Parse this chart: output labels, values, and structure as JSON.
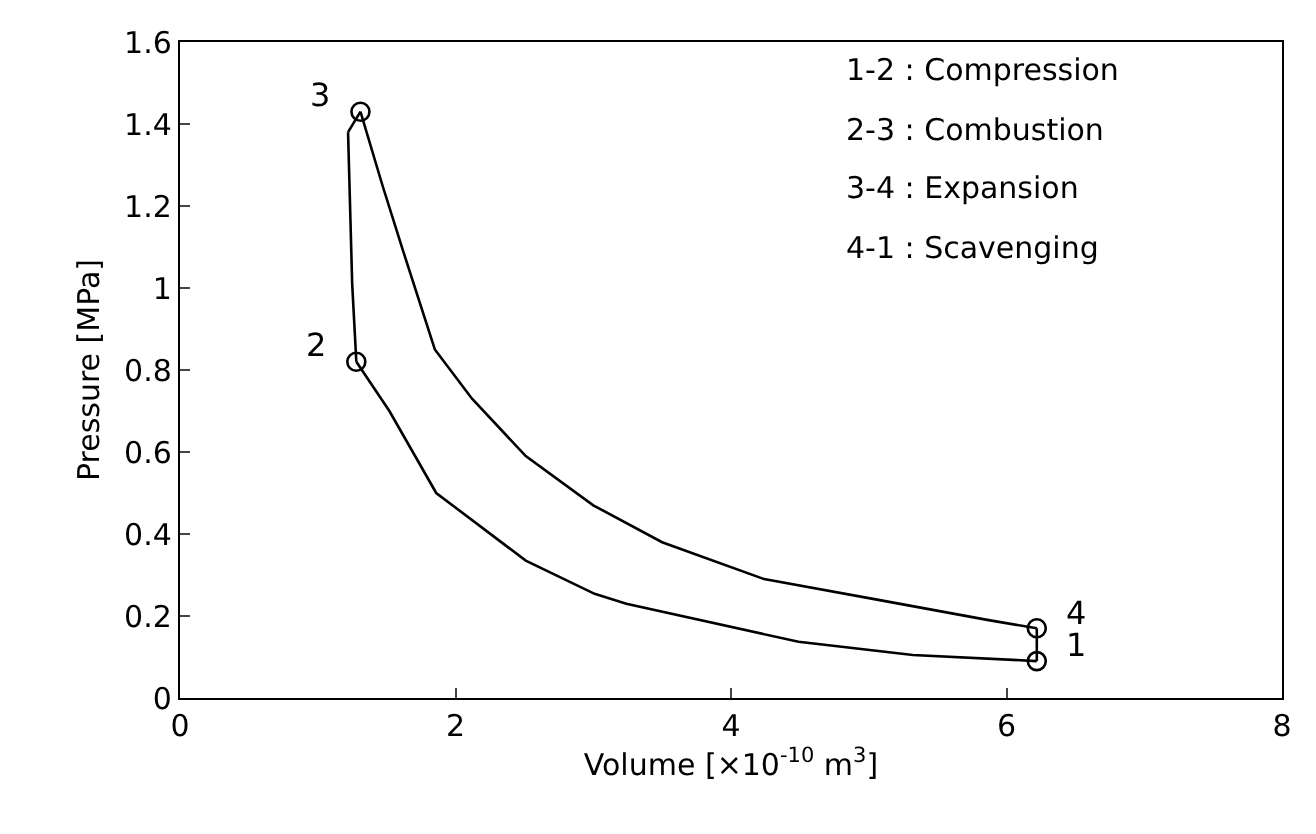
{
  "chart_data": {
    "type": "line",
    "xlabel": "Volume [×10$^{-10}$ m$^{3}$]",
    "ylabel": "Pressure [MPa]",
    "xlim": [
      0,
      8
    ],
    "xticks": [
      0,
      2,
      4,
      6,
      8
    ],
    "ylim": [
      0,
      1.6
    ],
    "yticks": [
      0,
      0.2,
      0.4,
      0.6,
      0.8,
      1,
      1.2,
      1.4,
      1.6
    ],
    "series": [
      {
        "color": "#000000",
        "marker": "none",
        "line_style": "solid",
        "x": [
          1.28,
          1.52,
          1.86,
          2.51,
          3.01,
          3.24,
          4.49,
          5.32,
          6.22
        ],
        "values": [
          0.82,
          0.7,
          0.5,
          0.335,
          0.254,
          0.23,
          0.137,
          0.105,
          0.09
        ]
      },
      {
        "color": "#000000",
        "marker": "none",
        "line_style": "solid",
        "x": [
          1.22,
          1.25,
          1.28
        ],
        "values": [
          1.38,
          1.01,
          0.82
        ]
      },
      {
        "color": "#000000",
        "marker": "none",
        "line_style": "solid",
        "x": [
          1.22,
          1.31
        ],
        "values": [
          1.38,
          1.43
        ]
      },
      {
        "color": "#000000",
        "marker": "none",
        "line_style": "solid",
        "x": [
          1.31,
          1.47,
          1.62,
          1.85,
          2.12,
          2.51,
          3.0,
          3.5,
          4.24,
          5.06,
          5.87,
          6.22
        ],
        "values": [
          1.43,
          1.25,
          1.09,
          0.85,
          0.73,
          0.59,
          0.47,
          0.38,
          0.29,
          0.24,
          0.19,
          0.17
        ]
      },
      {
        "color": "#000000",
        "marker": "none",
        "line_style": "solid",
        "x": [
          6.22,
          6.22
        ],
        "values": [
          0.17,
          0.09
        ]
      },
      {
        "type": "scatter",
        "color": "#000000",
        "marker": "circle",
        "x": [
          6.22,
          1.28,
          1.31,
          6.22
        ],
        "values": [
          0.09,
          0.82,
          1.43,
          0.17
        ]
      }
    ],
    "annotations": [
      {
        "text": "1",
        "x": 6.22,
        "y": 0.09
      },
      {
        "text": "2",
        "x": 1.28,
        "y": 0.82
      },
      {
        "text": "3",
        "x": 1.31,
        "y": 1.43
      },
      {
        "text": "4",
        "x": 6.22,
        "y": 0.17
      },
      "1-2 : Compression",
      "2-3 : Combustion",
      "3-4 : Expansion",
      "4-1 : Scavenging"
    ]
  }
}
